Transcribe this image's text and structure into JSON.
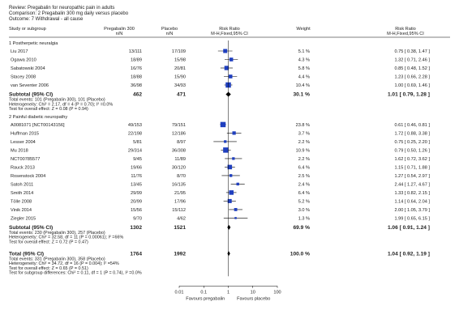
{
  "header": {
    "review": "Review:  Pregabalin for neuropathic pain in adults",
    "comparison": "Comparison:  2 Pregabalin 300 mg daily versus placebo",
    "outcome": "Outcome:  7 Withdrawal - all cause"
  },
  "columns": {
    "study": "Study or subgroup",
    "exp": "Pregabalin 300",
    "exp_sub": "n/N",
    "ctrl": "Placebo",
    "ctrl_sub": "n/N",
    "plot": "Risk Ratio",
    "plot_sub": "M-H,Fixed,95% CI",
    "weight": "Weight",
    "rr": "Risk Ratio",
    "rr_sub": "M-H,Fixed,95% CI"
  },
  "colors": {
    "study_box": "#1f3fbf",
    "line": "#000000",
    "text": "#222222"
  },
  "chart_data": {
    "type": "forest",
    "x_scale": "log",
    "xlim": [
      0.01,
      100
    ],
    "ticks": [
      "0.01",
      "0.1",
      "1",
      "10",
      "100"
    ],
    "favours_left": "Favours pregabalin",
    "favours_right": "Favours placebo",
    "subgroups": [
      {
        "title": "1 Postherpetic neuralgia",
        "studies": [
          {
            "name": "Liu 2017",
            "exp": "13/111",
            "ctrl": "17/109",
            "weight": "5.1 %",
            "rr_text": "0.75 [ 0.38, 1.47 ]",
            "rr": 0.75,
            "lo": 0.38,
            "hi": 1.47,
            "w": 5.1
          },
          {
            "name": "Ogawa 2010",
            "exp": "18/89",
            "ctrl": "15/98",
            "weight": "4.3 %",
            "rr_text": "1.32 [ 0.71, 2.46 ]",
            "rr": 1.32,
            "lo": 0.71,
            "hi": 2.46,
            "w": 4.3
          },
          {
            "name": "Sabatowski 2004",
            "exp": "16/76",
            "ctrl": "20/81",
            "weight": "5.8 %",
            "rr_text": "0.85 [ 0.48, 1.52 ]",
            "rr": 0.85,
            "lo": 0.48,
            "hi": 1.52,
            "w": 5.8
          },
          {
            "name": "Stacey 2008",
            "exp": "18/88",
            "ctrl": "15/90",
            "weight": "4.4 %",
            "rr_text": "1.23 [ 0.66, 2.28 ]",
            "rr": 1.23,
            "lo": 0.66,
            "hi": 2.28,
            "w": 4.4
          },
          {
            "name": "van Seventer 2006",
            "exp": "36/98",
            "ctrl": "34/93",
            "weight": "10.4 %",
            "rr_text": "1.00 [ 0.69, 1.46 ]",
            "rr": 1.0,
            "lo": 0.69,
            "hi": 1.46,
            "w": 10.4
          }
        ],
        "subtotal": {
          "label": "Subtotal (95% CI)",
          "exp": "462",
          "ctrl": "471",
          "weight": "30.1 %",
          "rr_text": "1.01 [ 0.79, 1.28 ]",
          "rr": 1.01,
          "lo": 0.79,
          "hi": 1.28
        },
        "stats": [
          "Total events: 101 (Pregabalin 300), 101 (Placebo)",
          "Heterogeneity: Chi² = 2.17, df = 4 (P = 0.70); I² =0.0%",
          "Test for overall effect: Z = 0.08 (P = 0.94)"
        ]
      },
      {
        "title": "2 Painful diabetic neuropathy",
        "studies": [
          {
            "name": "A0081071 [NCT00143156]",
            "exp": "49/153",
            "ctrl": "79/151",
            "weight": "23.8 %",
            "rr_text": "0.61 [ 0.46, 0.81 ]",
            "rr": 0.61,
            "lo": 0.46,
            "hi": 0.81,
            "w": 23.8
          },
          {
            "name": "Huffman 2015",
            "exp": "22/198",
            "ctrl": "12/186",
            "weight": "3.7 %",
            "rr_text": "1.72 [ 0.88, 3.38 ]",
            "rr": 1.72,
            "lo": 0.88,
            "hi": 3.38,
            "w": 3.7
          },
          {
            "name": "Lesser 2004",
            "exp": "5/81",
            "ctrl": "8/97",
            "weight": "2.2 %",
            "rr_text": "0.75 [ 0.25, 2.20 ]",
            "rr": 0.75,
            "lo": 0.25,
            "hi": 2.2,
            "w": 2.2
          },
          {
            "name": "Mu 2018",
            "exp": "29/314",
            "ctrl": "36/308",
            "weight": "10.9 %",
            "rr_text": "0.79 [ 0.50, 1.26 ]",
            "rr": 0.79,
            "lo": 0.5,
            "hi": 1.26,
            "w": 10.9
          },
          {
            "name": "NCT00785577",
            "exp": "9/45",
            "ctrl": "11/89",
            "weight": "2.2 %",
            "rr_text": "1.62 [ 0.72, 3.62 ]",
            "rr": 1.62,
            "lo": 0.72,
            "hi": 3.62,
            "w": 2.2
          },
          {
            "name": "Rauck 2013",
            "exp": "19/66",
            "ctrl": "30/120",
            "weight": "6.4 %",
            "rr_text": "1.15 [ 0.71, 1.88 ]",
            "rr": 1.15,
            "lo": 0.71,
            "hi": 1.88,
            "w": 6.4
          },
          {
            "name": "Rosenstock 2004",
            "exp": "11/76",
            "ctrl": "8/70",
            "weight": "2.5 %",
            "rr_text": "1.27 [ 0.54, 2.97 ]",
            "rr": 1.27,
            "lo": 0.54,
            "hi": 2.97,
            "w": 2.5
          },
          {
            "name": "Satoh 2011",
            "exp": "13/45",
            "ctrl": "16/135",
            "weight": "2.4 %",
            "rr_text": "2.44 [ 1.27, 4.67 ]",
            "rr": 2.44,
            "lo": 1.27,
            "hi": 4.67,
            "w": 2.4
          },
          {
            "name": "Smith 2014",
            "exp": "29/99",
            "ctrl": "21/95",
            "weight": "6.4 %",
            "rr_text": "1.33 [ 0.82, 2.15 ]",
            "rr": 1.33,
            "lo": 0.82,
            "hi": 2.15,
            "w": 6.4
          },
          {
            "name": "Tölle 2008",
            "exp": "20/99",
            "ctrl": "17/96",
            "weight": "5.2 %",
            "rr_text": "1.14 [ 0.64, 2.04 ]",
            "rr": 1.14,
            "lo": 0.64,
            "hi": 2.04,
            "w": 5.2
          },
          {
            "name": "Vinik 2014",
            "exp": "15/56",
            "ctrl": "15/112",
            "weight": "3.0 %",
            "rr_text": "2.00 [ 1.05, 3.79 ]",
            "rr": 2.0,
            "lo": 1.05,
            "hi": 3.79,
            "w": 3.0
          },
          {
            "name": "Ziegler 2015",
            "exp": "9/70",
            "ctrl": "4/62",
            "weight": "1.3 %",
            "rr_text": "1.99 [ 0.65, 6.15 ]",
            "rr": 1.99,
            "lo": 0.65,
            "hi": 6.15,
            "w": 1.3
          }
        ],
        "subtotal": {
          "label": "Subtotal (95% CI)",
          "exp": "1302",
          "ctrl": "1521",
          "weight": "69.9 %",
          "rr_text": "1.06 [ 0.91, 1.24 ]",
          "rr": 1.06,
          "lo": 0.91,
          "hi": 1.24
        },
        "stats": [
          "Total events: 230 (Pregabalin 300), 257 (Placebo)",
          "Heterogeneity: Chi² = 32.58, df = 11 (P = 0.00061); I² =66%",
          "Test for overall effect: Z = 0.72 (P = 0.47)"
        ]
      }
    ],
    "total": {
      "label": "Total (95% CI)",
      "exp": "1764",
      "ctrl": "1992",
      "weight": "100.0 %",
      "rr_text": "1.04 [ 0.92, 1.19 ]",
      "rr": 1.04,
      "lo": 0.92,
      "hi": 1.19
    },
    "total_stats": [
      "Total events: 331 (Pregabalin 300), 358 (Placebo)",
      "Heterogeneity: Chi² = 34.72, df = 16 (P = 0.004); I² =54%",
      "Test for overall effect: Z = 0.65 (P = 0.51)",
      "Test for subgroup differences: Chi² = 0.11, df = 1 (P = 0.74), I² =0.0%"
    ]
  }
}
